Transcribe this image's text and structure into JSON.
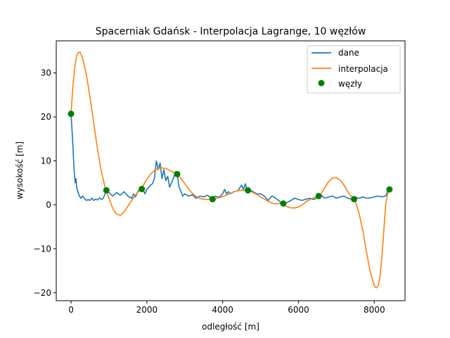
{
  "chart_data": {
    "type": "line",
    "title": "Spacerniak Gdańsk - Interpolacja Lagrange, 10 węzłów",
    "xlabel": "odległość [m]",
    "ylabel": "wysokość [m]",
    "xlim": [
      -390,
      8810
    ],
    "ylim": [
      -21.8,
      37.3
    ],
    "xticks": [
      0,
      2000,
      4000,
      6000,
      8000
    ],
    "yticks": [
      -20,
      -10,
      0,
      10,
      20,
      30
    ],
    "xtick_labels": [
      "0",
      "2000",
      "4000",
      "6000",
      "8000"
    ],
    "ytick_labels": [
      "−20",
      "−10",
      "0",
      "10",
      "20",
      "30"
    ],
    "legend": {
      "position": "top-right"
    },
    "series": [
      {
        "name": "dane",
        "type": "line",
        "color": "#1f77b4",
        "x": [
          0,
          40,
          80,
          110,
          130,
          150,
          180,
          220,
          260,
          300,
          350,
          400,
          450,
          500,
          550,
          600,
          650,
          700,
          750,
          800,
          850,
          900,
          930,
          1000,
          1100,
          1200,
          1300,
          1400,
          1500,
          1600,
          1650,
          1700,
          1750,
          1800,
          1850,
          1900,
          1950,
          2000,
          2050,
          2100,
          2150,
          2200,
          2250,
          2300,
          2350,
          2400,
          2450,
          2500,
          2550,
          2600,
          2650,
          2700,
          2750,
          2800,
          2850,
          2900,
          2950,
          3000,
          3100,
          3200,
          3300,
          3400,
          3500,
          3600,
          3700,
          3740,
          3800,
          3900,
          4000,
          4050,
          4100,
          4150,
          4200,
          4300,
          4400,
          4500,
          4550,
          4600,
          4650,
          4700,
          4800,
          4900,
          5000,
          5100,
          5200,
          5300,
          5400,
          5500,
          5600,
          5700,
          5800,
          5900,
          6000,
          6100,
          6200,
          6300,
          6400,
          6500,
          6560,
          6600,
          6700,
          6800,
          6900,
          7000,
          7100,
          7200,
          7300,
          7400,
          7480,
          7500,
          7600,
          7700,
          7800,
          7900,
          8000,
          8100,
          8200,
          8300,
          8350,
          8400
        ],
        "y": [
          20.7,
          15.0,
          8.0,
          5.0,
          6.0,
          4.0,
          3.0,
          2.0,
          1.5,
          2.0,
          1.5,
          1.0,
          1.2,
          1.0,
          1.5,
          1.0,
          1.3,
          1.1,
          1.6,
          1.2,
          1.5,
          2.5,
          3.3,
          2.8,
          2.0,
          2.8,
          2.2,
          3.0,
          2.0,
          1.5,
          2.5,
          1.8,
          2.8,
          3.5,
          3.0,
          3.5,
          2.5,
          3.5,
          4.0,
          4.5,
          4.8,
          6.0,
          10.0,
          8.0,
          9.5,
          6.0,
          8.0,
          5.5,
          6.5,
          4.0,
          5.0,
          6.0,
          7.5,
          7.0,
          4.0,
          3.0,
          2.0,
          2.5,
          2.0,
          2.3,
          1.5,
          2.0,
          1.8,
          2.2,
          1.5,
          1.4,
          2.0,
          1.7,
          2.5,
          3.5,
          2.5,
          3.0,
          2.5,
          3.0,
          3.2,
          4.5,
          3.5,
          4.8,
          3.0,
          3.5,
          3.0,
          2.5,
          2.5,
          2.0,
          1.0,
          2.0,
          1.5,
          0.8,
          0.3,
          0.5,
          1.0,
          1.5,
          1.2,
          1.0,
          1.3,
          1.5,
          1.2,
          1.6,
          1.9,
          2.2,
          1.5,
          1.8,
          2.0,
          1.5,
          1.8,
          2.0,
          1.5,
          1.3,
          1.2,
          1.7,
          1.5,
          1.8,
          1.5,
          1.6,
          1.8,
          2.0,
          1.8,
          2.0,
          3.0,
          3.5
        ]
      },
      {
        "name": "interpolacja",
        "type": "line",
        "color": "#ff7f0e",
        "x": [
          0,
          50,
          100,
          150,
          200,
          240,
          300,
          400,
          500,
          600,
          700,
          800,
          900,
          933,
          1000,
          1100,
          1200,
          1300,
          1400,
          1500,
          1600,
          1700,
          1800,
          1867,
          1900,
          2000,
          2100,
          2200,
          2300,
          2400,
          2480,
          2550,
          2650,
          2750,
          2800,
          2900,
          3000,
          3100,
          3200,
          3300,
          3400,
          3500,
          3600,
          3733,
          3800,
          3900,
          4000,
          4100,
          4200,
          4300,
          4400,
          4500,
          4667,
          4750,
          4850,
          5000,
          5100,
          5200,
          5300,
          5400,
          5500,
          5600,
          5700,
          5800,
          5900,
          6000,
          6100,
          6200,
          6300,
          6400,
          6533,
          6600,
          6700,
          6800,
          6900,
          7000,
          7100,
          7200,
          7300,
          7400,
          7467,
          7500,
          7600,
          7700,
          7800,
          7900,
          8000,
          8050,
          8100,
          8150,
          8200,
          8250,
          8300,
          8350,
          8400
        ],
        "y": [
          20.7,
          27.0,
          31.5,
          34.0,
          34.7,
          34.7,
          33.5,
          29.8,
          24.5,
          18.5,
          12.5,
          7.5,
          4.0,
          3.3,
          1.5,
          -0.8,
          -2.1,
          -2.4,
          -1.6,
          -0.3,
          1.0,
          2.2,
          3.2,
          3.6,
          4.4,
          5.8,
          7.0,
          7.8,
          8.3,
          8.4,
          8.3,
          8.1,
          7.6,
          7.2,
          7.0,
          6.0,
          4.8,
          3.6,
          2.6,
          1.9,
          1.4,
          1.3,
          1.2,
          1.3,
          1.4,
          1.6,
          1.9,
          2.2,
          2.6,
          3.0,
          3.2,
          3.3,
          3.3,
          3.0,
          2.6,
          1.8,
          1.3,
          0.8,
          0.4,
          0.2,
          0.3,
          0.2,
          -0.4,
          -0.7,
          -0.7,
          -0.5,
          0.0,
          0.7,
          1.2,
          1.6,
          2.0,
          2.6,
          4.0,
          5.3,
          6.1,
          6.2,
          5.6,
          4.5,
          3.0,
          1.8,
          1.3,
          0.8,
          -2.0,
          -6.0,
          -11.0,
          -15.5,
          -18.4,
          -18.9,
          -18.5,
          -16.5,
          -12.0,
          -6.0,
          0.0,
          2.5,
          3.5
        ]
      },
      {
        "name": "węzły",
        "type": "scatter",
        "color": "#008000",
        "x": [
          0,
          933,
          1867,
          2800,
          3733,
          4667,
          5600,
          6533,
          7467,
          8400
        ],
        "y": [
          20.7,
          3.3,
          3.6,
          7.0,
          1.3,
          3.3,
          0.3,
          2.0,
          1.3,
          3.5
        ]
      }
    ]
  }
}
